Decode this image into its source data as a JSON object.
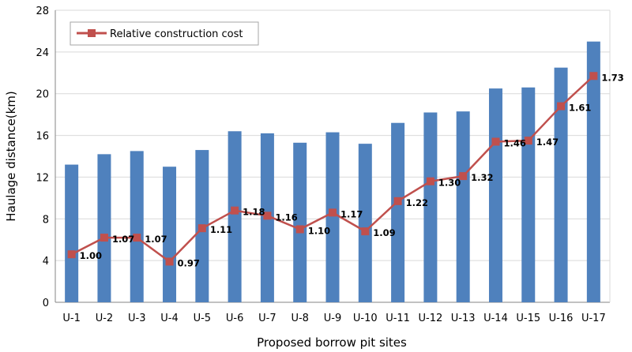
{
  "chart_data": {
    "type": "bar",
    "categories": [
      "U-1",
      "U-2",
      "U-3",
      "U-4",
      "U-5",
      "U-6",
      "U-7",
      "U-8",
      "U-9",
      "U-10",
      "U-11",
      "U-12",
      "U-13",
      "U-14",
      "U-15",
      "U-16",
      "U-17"
    ],
    "xlabel": "Proposed borrow pit sites",
    "ylabel": "Haulage distance(km)",
    "ylim": [
      0,
      28
    ],
    "yticks": [
      0,
      4,
      8,
      12,
      16,
      20,
      24,
      28
    ],
    "grid": true,
    "legend_position": "top-left",
    "series": [
      {
        "type": "bar",
        "color": "#4f81bd",
        "values": [
          13.2,
          14.2,
          14.5,
          13.0,
          14.6,
          16.4,
          16.2,
          15.3,
          16.3,
          15.2,
          17.2,
          18.2,
          18.3,
          20.5,
          20.6,
          22.5,
          25.0
        ]
      },
      {
        "type": "line",
        "name": "Relative construction cost",
        "color": "#c0504d",
        "marker": "square",
        "plot_values": [
          4.6,
          6.2,
          6.2,
          3.9,
          7.1,
          8.8,
          8.3,
          7.0,
          8.6,
          6.8,
          9.7,
          11.6,
          12.1,
          15.4,
          15.5,
          18.8,
          21.7
        ],
        "labels": [
          "1.00",
          "1.07",
          "1.07",
          "0.97",
          "1.11",
          "1.18",
          "1.16",
          "1.10",
          "1.17",
          "1.09",
          "1.22",
          "1.30",
          "1.32",
          "1.46",
          "1.47",
          "1.61",
          "1.73"
        ]
      }
    ]
  }
}
